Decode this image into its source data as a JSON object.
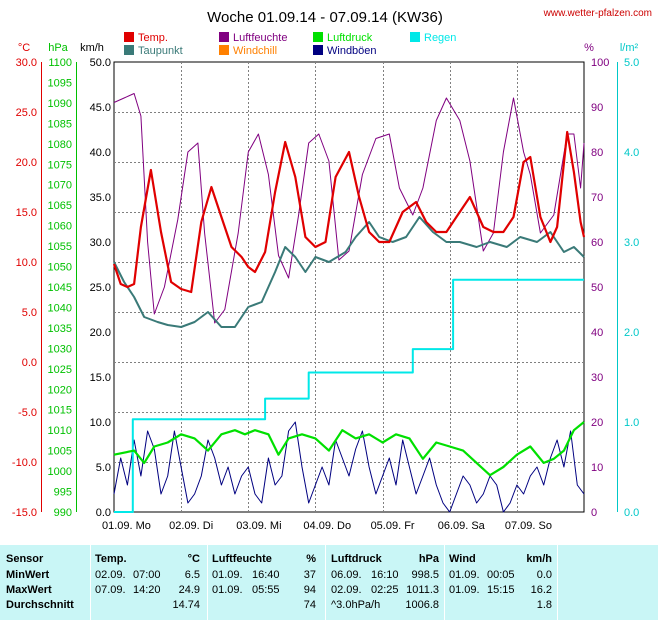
{
  "header": {
    "title": "Woche 01.09.14 - 07.09.14 (KW36)",
    "site": "www.wetter-pfalzen.com"
  },
  "legend": [
    {
      "label": "Temp.",
      "color": "#e00000"
    },
    {
      "label": "Taupunkt",
      "color": "#3a7a78"
    },
    {
      "label": "Luftfeuchte",
      "color": "#800080"
    },
    {
      "label": "Windchill",
      "color": "#ff8000"
    },
    {
      "label": "Luftdruck",
      "color": "#00e000"
    },
    {
      "label": "Windböen",
      "color": "#000080"
    },
    {
      "label": "Regen",
      "color": "#00e8e8"
    }
  ],
  "axis_units": {
    "temp": "°C",
    "pressure": "hPa",
    "wind": "km/h",
    "humidity": "%",
    "rain": "l/m²"
  },
  "colors": {
    "temp": "#e00000",
    "pressure": "#00c000",
    "wind": "#000080",
    "humidity": "#800080",
    "rain": "#00d8d8",
    "grid": "#808080",
    "stats_bg": "#c9f6f6"
  },
  "chart_data": {
    "type": "line",
    "title": "Woche 01.09.14 - 07.09.14 (KW36)",
    "x_categories": [
      "01.09. Mo",
      "02.09. Di",
      "03.09. Mi",
      "04.09. Do",
      "05.09. Fr",
      "06.09. Sa",
      "07.09. So"
    ],
    "x_range_days": [
      0,
      7
    ],
    "axes": {
      "temp": {
        "label": "°C",
        "min": -15,
        "max": 30,
        "ticks": [
          "30.0",
          "25.0",
          "20.0",
          "15.0",
          "10.0",
          "5.0",
          "0.0",
          "-5.0",
          "-10.0",
          "-15.0"
        ]
      },
      "pressure": {
        "label": "hPa",
        "min": 990,
        "max": 1100,
        "ticks": [
          "1100",
          "1095",
          "1090",
          "1085",
          "1080",
          "1075",
          "1070",
          "1065",
          "1060",
          "1055",
          "1050",
          "1045",
          "1040",
          "1035",
          "1030",
          "1025",
          "1020",
          "1015",
          "1010",
          "1005",
          "1000",
          "995",
          "990"
        ]
      },
      "wind": {
        "label": "km/h",
        "min": 0,
        "max": 50,
        "ticks": [
          "50.0",
          "45.0",
          "40.0",
          "35.0",
          "30.0",
          "25.0",
          "20.0",
          "15.0",
          "10.0",
          "5.0",
          "0.0"
        ]
      },
      "humidity": {
        "label": "%",
        "min": 0,
        "max": 100,
        "ticks": [
          "100",
          "90",
          "80",
          "70",
          "60",
          "50",
          "40",
          "30",
          "20",
          "10",
          "0"
        ]
      },
      "rain": {
        "label": "l/m²",
        "min": 0,
        "max": 5,
        "ticks": [
          "5.0",
          "4.0",
          "3.0",
          "2.0",
          "1.0",
          "0.0"
        ]
      }
    },
    "series": [
      {
        "name": "Temp.",
        "axis": "temp",
        "points": [
          [
            0,
            9.8
          ],
          [
            0.1,
            7.8
          ],
          [
            0.2,
            7.5
          ],
          [
            0.3,
            7.8
          ],
          [
            0.4,
            13.5
          ],
          [
            0.55,
            19.2
          ],
          [
            0.7,
            13
          ],
          [
            0.85,
            8
          ],
          [
            1.0,
            7.3
          ],
          [
            1.15,
            7.0
          ],
          [
            1.3,
            14
          ],
          [
            1.45,
            17.5
          ],
          [
            1.6,
            14.5
          ],
          [
            1.75,
            11.5
          ],
          [
            1.9,
            10.5
          ],
          [
            2.0,
            9.5
          ],
          [
            2.1,
            9.0
          ],
          [
            2.25,
            11
          ],
          [
            2.4,
            17
          ],
          [
            2.55,
            22
          ],
          [
            2.7,
            18.5
          ],
          [
            2.85,
            12.5
          ],
          [
            3.0,
            11.5
          ],
          [
            3.15,
            12
          ],
          [
            3.3,
            18.5
          ],
          [
            3.5,
            21
          ],
          [
            3.65,
            16.5
          ],
          [
            3.8,
            13
          ],
          [
            3.95,
            12
          ],
          [
            4.1,
            12
          ],
          [
            4.3,
            15
          ],
          [
            4.5,
            16
          ],
          [
            4.65,
            14
          ],
          [
            4.8,
            13
          ],
          [
            4.95,
            13
          ],
          [
            5.1,
            14.5
          ],
          [
            5.3,
            16.5
          ],
          [
            5.5,
            13.5
          ],
          [
            5.65,
            13
          ],
          [
            5.8,
            13
          ],
          [
            5.95,
            14.5
          ],
          [
            6.1,
            20
          ],
          [
            6.2,
            20.5
          ],
          [
            6.35,
            14.5
          ],
          [
            6.5,
            12
          ],
          [
            6.6,
            13.5
          ],
          [
            6.75,
            23
          ],
          [
            6.85,
            19
          ],
          [
            6.95,
            14
          ],
          [
            7.0,
            12.5
          ]
        ]
      },
      {
        "name": "Taupunkt",
        "axis": "temp",
        "points": [
          [
            0,
            10
          ],
          [
            0.15,
            8
          ],
          [
            0.3,
            6.5
          ],
          [
            0.45,
            4.5
          ],
          [
            0.65,
            4.0
          ],
          [
            0.8,
            3.7
          ],
          [
            1.0,
            3.5
          ],
          [
            1.2,
            4.0
          ],
          [
            1.4,
            5.0
          ],
          [
            1.6,
            3.5
          ],
          [
            1.8,
            3.5
          ],
          [
            2.0,
            5.5
          ],
          [
            2.2,
            6.0
          ],
          [
            2.4,
            9.0
          ],
          [
            2.55,
            11.5
          ],
          [
            2.7,
            10.5
          ],
          [
            2.85,
            9.0
          ],
          [
            3.0,
            10.5
          ],
          [
            3.2,
            10.0
          ],
          [
            3.45,
            11.0
          ],
          [
            3.6,
            12.5
          ],
          [
            3.8,
            14.0
          ],
          [
            3.95,
            12.5
          ],
          [
            4.15,
            12.0
          ],
          [
            4.35,
            12.5
          ],
          [
            4.55,
            14.5
          ],
          [
            4.75,
            13.0
          ],
          [
            4.95,
            12.0
          ],
          [
            5.15,
            12.0
          ],
          [
            5.4,
            11.5
          ],
          [
            5.6,
            12.0
          ],
          [
            5.85,
            11.5
          ],
          [
            6.05,
            12.5
          ],
          [
            6.3,
            12.0
          ],
          [
            6.5,
            13.0
          ],
          [
            6.7,
            11.0
          ],
          [
            6.85,
            11.5
          ],
          [
            7.0,
            10.5
          ]
        ]
      },
      {
        "name": "Luftfeuchte",
        "axis": "humidity",
        "points": [
          [
            0,
            91
          ],
          [
            0.15,
            92
          ],
          [
            0.3,
            93
          ],
          [
            0.4,
            88
          ],
          [
            0.5,
            60
          ],
          [
            0.6,
            44
          ],
          [
            0.75,
            50
          ],
          [
            0.95,
            65
          ],
          [
            1.1,
            80
          ],
          [
            1.25,
            82
          ],
          [
            1.35,
            62
          ],
          [
            1.5,
            42
          ],
          [
            1.65,
            45
          ],
          [
            1.85,
            62
          ],
          [
            2.0,
            80
          ],
          [
            2.15,
            84
          ],
          [
            2.3,
            75
          ],
          [
            2.45,
            57
          ],
          [
            2.6,
            52
          ],
          [
            2.75,
            66
          ],
          [
            2.9,
            82
          ],
          [
            3.05,
            84
          ],
          [
            3.2,
            78
          ],
          [
            3.35,
            56
          ],
          [
            3.5,
            58
          ],
          [
            3.7,
            75
          ],
          [
            3.9,
            83
          ],
          [
            4.1,
            84
          ],
          [
            4.25,
            72
          ],
          [
            4.45,
            66
          ],
          [
            4.6,
            72
          ],
          [
            4.8,
            87
          ],
          [
            4.95,
            92
          ],
          [
            5.15,
            87
          ],
          [
            5.3,
            78
          ],
          [
            5.5,
            58
          ],
          [
            5.65,
            62
          ],
          [
            5.8,
            80
          ],
          [
            5.95,
            92
          ],
          [
            6.1,
            80
          ],
          [
            6.2,
            75
          ],
          [
            6.35,
            62
          ],
          [
            6.55,
            66
          ],
          [
            6.75,
            84
          ],
          [
            6.85,
            84
          ],
          [
            6.95,
            72
          ],
          [
            7.0,
            82
          ]
        ]
      },
      {
        "name": "Luftdruck",
        "axis": "pressure",
        "points": [
          [
            0,
            1004
          ],
          [
            0.3,
            1005
          ],
          [
            0.45,
            1002
          ],
          [
            0.6,
            1006
          ],
          [
            0.8,
            1007
          ],
          [
            1.0,
            1009
          ],
          [
            1.2,
            1008
          ],
          [
            1.4,
            1005
          ],
          [
            1.6,
            1009
          ],
          [
            1.8,
            1010
          ],
          [
            1.95,
            1009
          ],
          [
            2.1,
            1010
          ],
          [
            2.3,
            1009
          ],
          [
            2.45,
            1004
          ],
          [
            2.6,
            1008
          ],
          [
            2.8,
            1009
          ],
          [
            3.0,
            1008
          ],
          [
            3.2,
            1005
          ],
          [
            3.4,
            1010
          ],
          [
            3.6,
            1008
          ],
          [
            3.8,
            1009
          ],
          [
            4.0,
            1007
          ],
          [
            4.2,
            1009
          ],
          [
            4.4,
            1008
          ],
          [
            4.6,
            1003
          ],
          [
            4.8,
            1007
          ],
          [
            5.0,
            1006
          ],
          [
            5.2,
            1005
          ],
          [
            5.4,
            1002
          ],
          [
            5.6,
            999
          ],
          [
            5.8,
            1001
          ],
          [
            6.0,
            1004
          ],
          [
            6.2,
            1006
          ],
          [
            6.4,
            1002
          ],
          [
            6.55,
            1003
          ],
          [
            6.7,
            1005
          ],
          [
            6.85,
            1010
          ],
          [
            7.0,
            1012
          ]
        ]
      },
      {
        "name": "Windböen",
        "axis": "wind",
        "points": [
          [
            0,
            2
          ],
          [
            0.1,
            6
          ],
          [
            0.2,
            3
          ],
          [
            0.3,
            8
          ],
          [
            0.4,
            4
          ],
          [
            0.5,
            9
          ],
          [
            0.6,
            7
          ],
          [
            0.7,
            2
          ],
          [
            0.8,
            4
          ],
          [
            0.9,
            9
          ],
          [
            1.0,
            5
          ],
          [
            1.1,
            1
          ],
          [
            1.2,
            2
          ],
          [
            1.3,
            4
          ],
          [
            1.4,
            8
          ],
          [
            1.5,
            6
          ],
          [
            1.6,
            3
          ],
          [
            1.7,
            5
          ],
          [
            1.8,
            2
          ],
          [
            1.9,
            4
          ],
          [
            2.0,
            5
          ],
          [
            2.1,
            2
          ],
          [
            2.2,
            1
          ],
          [
            2.3,
            6
          ],
          [
            2.4,
            3
          ],
          [
            2.5,
            4
          ],
          [
            2.6,
            9
          ],
          [
            2.7,
            10
          ],
          [
            2.8,
            5
          ],
          [
            2.9,
            1
          ],
          [
            3.0,
            3
          ],
          [
            3.1,
            5
          ],
          [
            3.2,
            3
          ],
          [
            3.3,
            8
          ],
          [
            3.4,
            6
          ],
          [
            3.5,
            4
          ],
          [
            3.6,
            7
          ],
          [
            3.7,
            9
          ],
          [
            3.8,
            5
          ],
          [
            3.9,
            2
          ],
          [
            4.0,
            4
          ],
          [
            4.1,
            6
          ],
          [
            4.2,
            3
          ],
          [
            4.3,
            8
          ],
          [
            4.4,
            5
          ],
          [
            4.5,
            2
          ],
          [
            4.6,
            4
          ],
          [
            4.7,
            6
          ],
          [
            4.8,
            3
          ],
          [
            4.9,
            1
          ],
          [
            5.0,
            0
          ],
          [
            5.1,
            2
          ],
          [
            5.2,
            4
          ],
          [
            5.3,
            3
          ],
          [
            5.4,
            1
          ],
          [
            5.5,
            2
          ],
          [
            5.6,
            4
          ],
          [
            5.7,
            3
          ],
          [
            5.8,
            0
          ],
          [
            5.9,
            1
          ],
          [
            6.0,
            3
          ],
          [
            6.1,
            2
          ],
          [
            6.2,
            4
          ],
          [
            6.3,
            5
          ],
          [
            6.4,
            3
          ],
          [
            6.5,
            6
          ],
          [
            6.6,
            8
          ],
          [
            6.7,
            5
          ],
          [
            6.8,
            9
          ],
          [
            6.9,
            3
          ],
          [
            7.0,
            2
          ]
        ]
      },
      {
        "name": "Regen",
        "axis": "rain",
        "points": [
          [
            0,
            0
          ],
          [
            0.28,
            0
          ],
          [
            0.28,
            1.03
          ],
          [
            2.25,
            1.03
          ],
          [
            2.25,
            1.26
          ],
          [
            2.9,
            1.26
          ],
          [
            2.9,
            1.55
          ],
          [
            4.45,
            1.55
          ],
          [
            4.45,
            1.81
          ],
          [
            5.05,
            1.81
          ],
          [
            5.05,
            2.58
          ],
          [
            5.2,
            2.58
          ],
          [
            5.2,
            2.58
          ],
          [
            7.0,
            2.58
          ]
        ]
      }
    ]
  },
  "stats": {
    "headers": {
      "sensor": "Sensor",
      "temp": "Temp.",
      "temp_unit": "°C",
      "hum": "Luftfeuchte",
      "hum_unit": "%",
      "press": "Luftdruck",
      "press_unit": "hPa",
      "wind": "Wind",
      "wind_unit": "km/h"
    },
    "rows": [
      {
        "label": "MinWert",
        "t_date": "02.09.",
        "t_time": "07:00",
        "t_val": "6.5",
        "h_date": "01.09.",
        "h_time": "16:40",
        "h_val": "37",
        "p_date": "06.09.",
        "p_time": "16:10",
        "p_val": "998.5",
        "w_date": "01.09.",
        "w_time": "00:05",
        "w_val": "0.0"
      },
      {
        "label": "MaxWert",
        "t_date": "07.09.",
        "t_time": "14:20",
        "t_val": "24.9",
        "h_date": "01.09.",
        "h_time": "05:55",
        "h_val": "94",
        "p_date": "02.09.",
        "p_time": "02:25",
        "p_val": "1011.3",
        "w_date": "01.09.",
        "w_time": "15:15",
        "w_val": "16.2"
      },
      {
        "label": "Durchschnitt",
        "t_date": "",
        "t_time": "",
        "t_val": "14.74",
        "h_date": "",
        "h_time": "",
        "h_val": "74",
        "p_date": "^3.0hPa/h",
        "p_time": "",
        "p_val": "1006.8",
        "w_date": "",
        "w_time": "",
        "w_val": "1.8"
      }
    ]
  }
}
